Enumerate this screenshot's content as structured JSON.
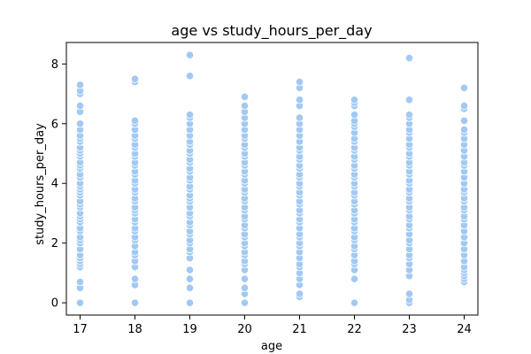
{
  "chart_data": {
    "type": "scatter",
    "title": "age vs study_hours_per_day",
    "xlabel": "age",
    "ylabel": "study_hours_per_day",
    "xlim": [
      16.75,
      24.25
    ],
    "ylim": [
      -0.41,
      8.72
    ],
    "xticks": [
      17,
      18,
      19,
      20,
      21,
      22,
      23,
      24
    ],
    "yticks": [
      0,
      2,
      4,
      6,
      8
    ],
    "grid": false,
    "legend": "none",
    "marker_color": "#a1c9f4",
    "marker_edge": "#ffffff",
    "series": [
      {
        "x": 17,
        "values": [
          0,
          0.5,
          0.7,
          1.2,
          1.3,
          1.4,
          1.5,
          1.6,
          1.8,
          2.0,
          2.1,
          2.2,
          2.4,
          2.5,
          2.7,
          2.8,
          2.9,
          3.0,
          3.2,
          3.3,
          3.4,
          3.6,
          3.7,
          3.8,
          3.9,
          4.0,
          4.2,
          4.3,
          4.5,
          4.6,
          4.7,
          4.9,
          5.0,
          5.1,
          5.2,
          5.4,
          5.5,
          5.6,
          5.8,
          6.0,
          6.4,
          6.6,
          7.0,
          7.1,
          7.3
        ]
      },
      {
        "x": 18,
        "values": [
          0,
          0.6,
          0.8,
          1.2,
          1.4,
          1.6,
          1.7,
          1.9,
          2.1,
          2.2,
          2.4,
          2.5,
          2.7,
          2.8,
          3.0,
          3.1,
          3.2,
          3.4,
          3.5,
          3.7,
          3.8,
          4.0,
          4.1,
          4.3,
          4.4,
          4.6,
          4.7,
          4.9,
          5.0,
          5.2,
          5.3,
          5.5,
          5.6,
          5.8,
          6.0,
          6.1,
          7.4,
          7.5
        ]
      },
      {
        "x": 19,
        "values": [
          0,
          0.5,
          0.8,
          1.1,
          1.5,
          1.7,
          1.8,
          2.0,
          2.1,
          2.3,
          2.4,
          2.6,
          2.7,
          2.9,
          3.0,
          3.2,
          3.4,
          3.5,
          3.6,
          3.8,
          3.9,
          4.1,
          4.2,
          4.4,
          4.5,
          4.7,
          4.8,
          5.0,
          5.1,
          5.3,
          5.4,
          5.6,
          5.8,
          6.0,
          6.2,
          6.3,
          7.6,
          8.3
        ]
      },
      {
        "x": 20,
        "values": [
          0,
          0.3,
          0.5,
          0.8,
          1.1,
          1.3,
          1.4,
          1.6,
          1.7,
          1.9,
          2.0,
          2.2,
          2.3,
          2.5,
          2.6,
          2.8,
          2.9,
          3.1,
          3.2,
          3.4,
          3.5,
          3.7,
          3.8,
          4.0,
          4.1,
          4.3,
          4.4,
          4.6,
          4.7,
          4.9,
          5.0,
          5.2,
          5.3,
          5.5,
          5.6,
          5.8,
          6.0,
          6.2,
          6.4,
          6.6,
          6.9
        ]
      },
      {
        "x": 21,
        "values": [
          0.2,
          0.3,
          0.6,
          0.8,
          1.0,
          1.2,
          1.3,
          1.5,
          1.7,
          1.9,
          2.0,
          2.2,
          2.3,
          2.5,
          2.7,
          2.8,
          3.0,
          3.1,
          3.3,
          3.4,
          3.6,
          3.7,
          3.9,
          4.0,
          4.2,
          4.3,
          4.5,
          4.6,
          4.8,
          4.9,
          5.1,
          5.2,
          5.4,
          5.6,
          5.8,
          6.0,
          6.2,
          6.6,
          6.8,
          7.2,
          7.4
        ]
      },
      {
        "x": 22,
        "values": [
          0,
          0.8,
          1.1,
          1.3,
          1.4,
          1.6,
          1.8,
          1.9,
          2.1,
          2.2,
          2.4,
          2.5,
          2.7,
          2.8,
          3.0,
          3.1,
          3.3,
          3.4,
          3.6,
          3.7,
          3.9,
          4.0,
          4.2,
          4.3,
          4.5,
          4.6,
          4.8,
          4.9,
          5.1,
          5.2,
          5.4,
          5.5,
          5.7,
          5.9,
          6.0,
          6.1,
          6.3,
          6.6,
          6.7,
          6.8
        ]
      },
      {
        "x": 23,
        "values": [
          0,
          0.1,
          0.3,
          0.9,
          1.1,
          1.3,
          1.5,
          1.6,
          1.8,
          2.0,
          2.1,
          2.3,
          2.5,
          2.6,
          2.8,
          2.9,
          3.1,
          3.2,
          3.4,
          3.5,
          3.7,
          3.8,
          4.0,
          4.1,
          4.3,
          4.4,
          4.6,
          4.7,
          4.9,
          5.0,
          5.2,
          5.3,
          5.5,
          5.7,
          5.8,
          6.0,
          6.2,
          6.3,
          6.8,
          8.2
        ]
      },
      {
        "x": 24,
        "values": [
          0.7,
          0.8,
          0.9,
          1.0,
          1.1,
          1.2,
          1.4,
          1.6,
          1.8,
          2.0,
          2.2,
          2.4,
          2.6,
          2.8,
          2.9,
          3.1,
          3.2,
          3.4,
          3.5,
          3.7,
          3.8,
          4.0,
          4.2,
          4.4,
          4.6,
          4.7,
          4.9,
          5.1,
          5.3,
          5.5,
          5.7,
          5.8,
          6.1,
          6.5,
          6.6,
          7.2
        ]
      }
    ]
  }
}
